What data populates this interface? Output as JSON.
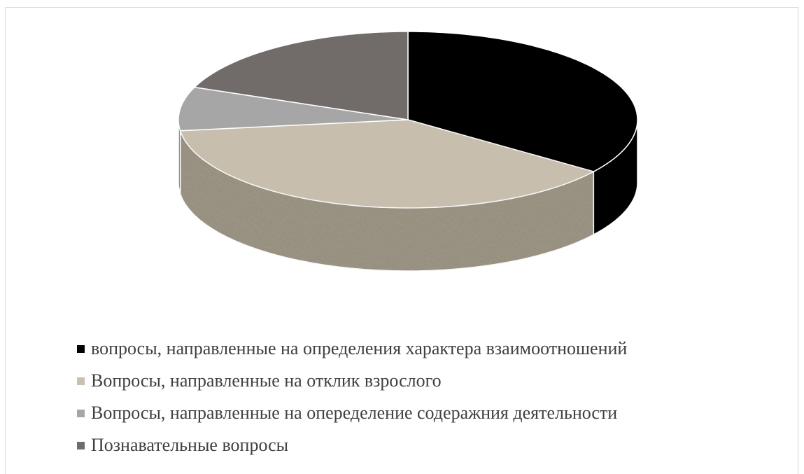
{
  "chart_data": {
    "type": "pie",
    "style": "3d",
    "categories": [
      "вопросы, направленные на определения характера взаимоотношений",
      "Вопросы, направленные на отклик взрослого",
      "Вопросы, направленные на опеределение содеражния деятельности",
      "Познавательные вопросы"
    ],
    "values": [
      35,
      38,
      8,
      19
    ],
    "colors": [
      "#000000",
      "#c9c0ad",
      "#a6a6a6",
      "#716b69"
    ],
    "side_colors": [
      "#000000",
      "#928a78",
      "#7d7d7d",
      "#4f4b49"
    ],
    "legend": "bottom"
  }
}
